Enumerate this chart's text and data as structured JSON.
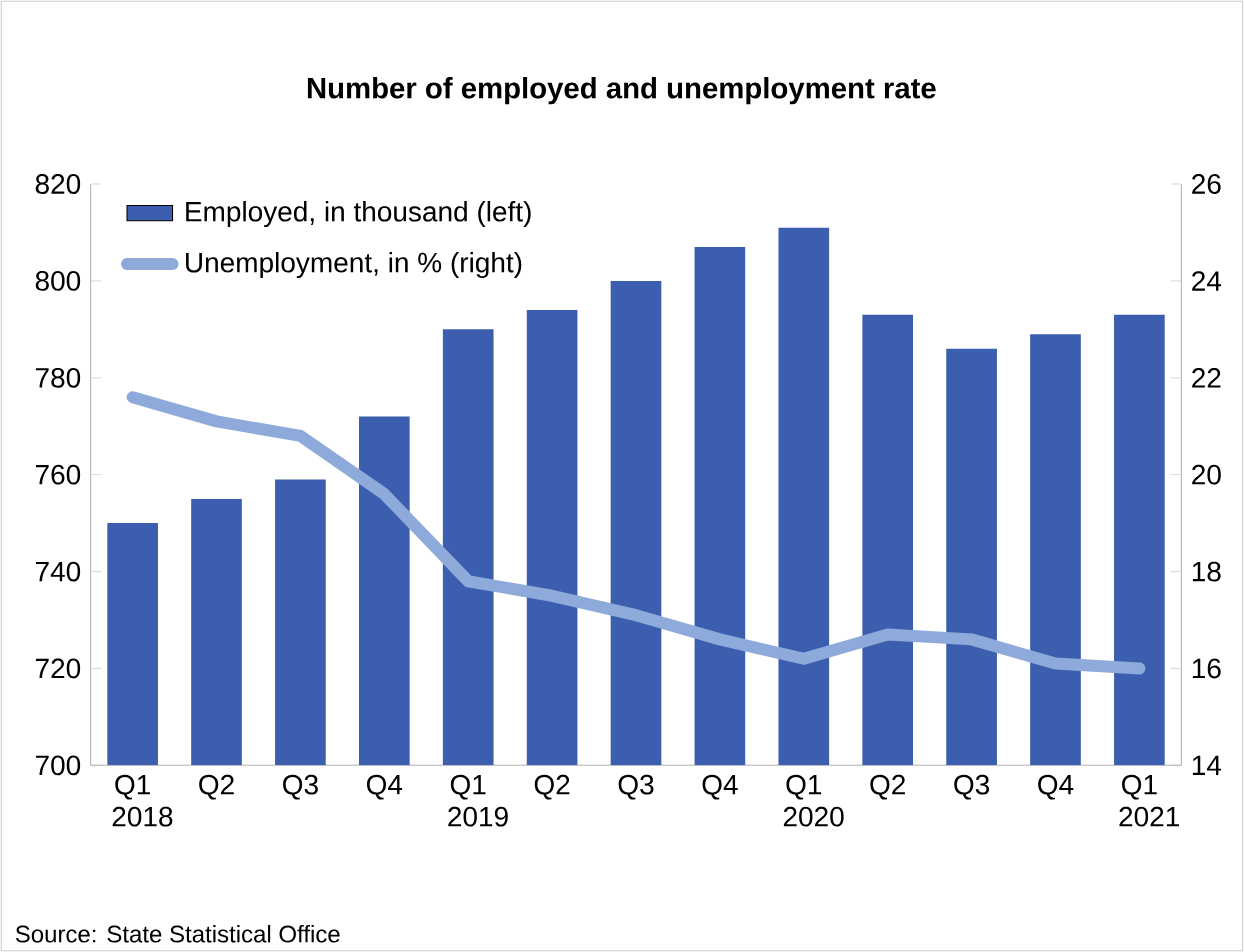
{
  "chart_data": {
    "type": "bar",
    "title": "Number of employed and unemployment rate",
    "categories": [
      "Q1 2018",
      "Q2",
      "Q3",
      "Q4",
      "Q1 2019",
      "Q2",
      "Q3",
      "Q4",
      "Q1 2020",
      "Q2",
      "Q3",
      "Q4",
      "Q1 2021"
    ],
    "series": [
      {
        "name": "Employed, in thousand (left)",
        "color": "#3c5eae",
        "values": [
          750,
          755,
          759,
          772,
          790,
          794,
          800,
          807,
          811,
          793,
          786,
          789,
          793
        ]
      },
      {
        "name": "Unemployment, in % (right)",
        "type": "line",
        "axis": "y2",
        "color": "#8eaadb",
        "values": [
          21.6,
          21.1,
          20.8,
          19.6,
          17.8,
          17.5,
          17.1,
          16.6,
          16.2,
          16.7,
          16.6,
          16.1,
          16.0
        ]
      }
    ],
    "ylim": [
      700,
      820
    ],
    "yticks": [
      700,
      720,
      740,
      760,
      780,
      800,
      820
    ],
    "y2lim": [
      14,
      26
    ],
    "y2ticks": [
      14,
      16,
      18,
      20,
      22,
      24,
      26
    ],
    "grid": false,
    "legend": "top left",
    "marker": "none",
    "line_style": "solid",
    "annotations": [
      "Source: State Statistical Office"
    ]
  }
}
